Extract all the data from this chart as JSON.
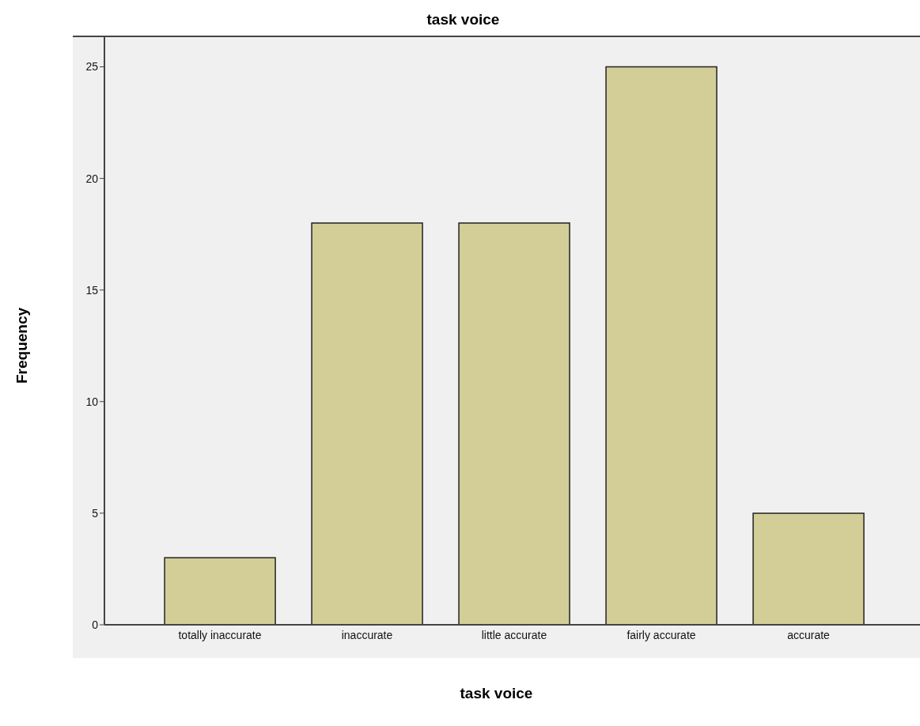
{
  "chart_data": {
    "type": "bar",
    "title": "task voice",
    "xlabel": "task voice",
    "ylabel": "Frequency",
    "categories": [
      "totally inaccurate",
      "inaccurate",
      "little accurate",
      "fairly accurate",
      "accurate"
    ],
    "values": [
      3,
      18,
      18,
      25,
      5
    ],
    "color": "#d3ce98",
    "ylim": [
      0,
      26.4
    ],
    "yticks": [
      0,
      5,
      10,
      15,
      20,
      25
    ],
    "grid": false,
    "legend": false
  }
}
